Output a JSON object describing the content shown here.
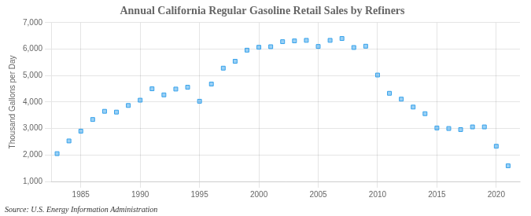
{
  "chart_data": {
    "type": "scatter",
    "title": "Annual California Regular Gasoline Retail Sales by Refiners",
    "ylabel": "Thousand Gallons per Day",
    "annotations": [
      "Source: U.S. Energy Information Administration"
    ],
    "x": [
      1983,
      1984,
      1985,
      1986,
      1987,
      1988,
      1989,
      1990,
      1991,
      1992,
      1993,
      1994,
      1995,
      1996,
      1997,
      1998,
      1999,
      2000,
      2001,
      2002,
      2003,
      2004,
      2005,
      2006,
      2007,
      2008,
      2009,
      2010,
      2011,
      2012,
      2013,
      2014,
      2015,
      2016,
      2017,
      2018,
      2019,
      2020,
      2021
    ],
    "values": [
      2050,
      2530,
      2900,
      3340,
      3650,
      3620,
      3870,
      4070,
      4500,
      4270,
      4490,
      4560,
      4030,
      4680,
      5280,
      5540,
      5960,
      6070,
      6090,
      6280,
      6310,
      6330,
      6100,
      6330,
      6400,
      6060,
      6110,
      5020,
      4330,
      4110,
      3810,
      3560,
      3020,
      3000,
      2960,
      3060,
      3060,
      2330,
      1590
    ],
    "xlim": [
      1982.5,
      2022
    ],
    "xticks": [
      1985,
      1990,
      1995,
      2000,
      2005,
      2010,
      2015,
      2020
    ],
    "ylim": [
      1000,
      7000
    ],
    "yticks": [
      {
        "value": 1000,
        "label": "1,000"
      },
      {
        "value": 2000,
        "label": "2,000"
      },
      {
        "value": 3000,
        "label": "3,000"
      },
      {
        "value": 4000,
        "label": "4,000"
      },
      {
        "value": 5000,
        "label": "5,000"
      },
      {
        "value": 6000,
        "label": "6,000"
      },
      {
        "value": 7000,
        "label": "7,000"
      }
    ],
    "marker": "square",
    "grid": true
  }
}
